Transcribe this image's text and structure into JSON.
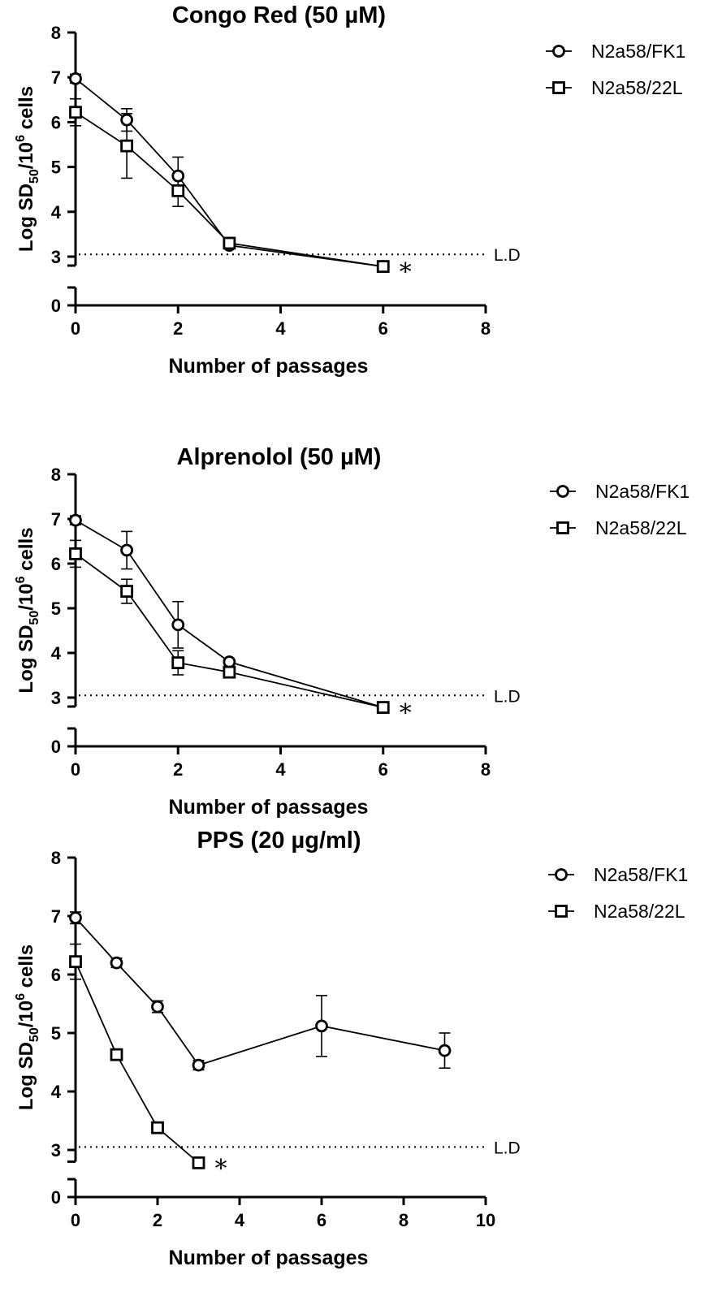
{
  "chart_data": [
    {
      "type": "line",
      "title": "Congo Red (50 µM)",
      "xlabel": "Number of passages",
      "ylabel_main": "Log SD",
      "ylabel_sub": "50",
      "ylabel_mid": "/10",
      "ylabel_sup": "6",
      "ylabel_end": " cells",
      "xlim": [
        0,
        8
      ],
      "xticks": [
        0,
        2,
        4,
        6,
        8
      ],
      "yticks": [
        0,
        3,
        4,
        5,
        6,
        7,
        8
      ],
      "ylim": [
        0,
        8
      ],
      "y_axis_break": [
        0.5,
        2.8
      ],
      "detection_limit": {
        "value": 3.05,
        "label": "L.D"
      },
      "annotation": "*",
      "legend_position": "top-right",
      "series": [
        {
          "name": "N2a58/FK1",
          "marker": "circle",
          "x": [
            0,
            1,
            2,
            3,
            6
          ],
          "y": [
            6.97,
            6.05,
            4.8,
            3.25,
            2.78
          ],
          "err": [
            0.1,
            0.25,
            0.42,
            0.05,
            0
          ]
        },
        {
          "name": "N2a58/22L",
          "marker": "square",
          "x": [
            0,
            1,
            2,
            3,
            6
          ],
          "y": [
            6.22,
            5.47,
            4.47,
            3.3,
            2.78
          ],
          "err": [
            0.3,
            0.72,
            0.35,
            0.05,
            0
          ]
        }
      ]
    },
    {
      "type": "line",
      "title": "Alprenolol (50 µM)",
      "xlabel": "Number of passages",
      "ylabel_main": "Log SD",
      "ylabel_sub": "50",
      "ylabel_mid": "/10",
      "ylabel_sup": "6",
      "ylabel_end": " cells",
      "xlim": [
        0,
        8
      ],
      "xticks": [
        0,
        2,
        4,
        6,
        8
      ],
      "yticks": [
        0,
        3,
        4,
        5,
        6,
        7,
        8
      ],
      "ylim": [
        0,
        8
      ],
      "y_axis_break": [
        0.5,
        2.8
      ],
      "detection_limit": {
        "value": 3.05,
        "label": "L.D"
      },
      "annotation": "*",
      "legend_position": "top-right",
      "series": [
        {
          "name": "N2a58/FK1",
          "marker": "circle",
          "x": [
            0,
            1,
            2,
            3,
            6
          ],
          "y": [
            6.97,
            6.3,
            4.63,
            3.8,
            2.78
          ],
          "err": [
            0.1,
            0.42,
            0.52,
            0.05,
            0
          ]
        },
        {
          "name": "N2a58/22L",
          "marker": "square",
          "x": [
            0,
            1,
            2,
            3,
            6
          ],
          "y": [
            6.22,
            5.38,
            3.78,
            3.57,
            2.78
          ],
          "err": [
            0.3,
            0.27,
            0.27,
            0.05,
            0
          ]
        }
      ]
    },
    {
      "type": "line",
      "title": "PPS (20 µg/ml)",
      "xlabel": "Number of passages",
      "ylabel_main": "Log SD",
      "ylabel_sub": "50",
      "ylabel_mid": "/10",
      "ylabel_sup": "6",
      "ylabel_end": " cells",
      "xlim": [
        0,
        10
      ],
      "xticks": [
        0,
        2,
        4,
        6,
        8,
        10
      ],
      "yticks": [
        0,
        3,
        4,
        5,
        6,
        7,
        8
      ],
      "ylim": [
        0,
        8
      ],
      "y_axis_break": [
        0.5,
        2.8
      ],
      "detection_limit": {
        "value": 3.05,
        "label": "L.D"
      },
      "annotation": "*",
      "legend_position": "top-right",
      "series": [
        {
          "name": "N2a58/FK1",
          "marker": "circle",
          "x": [
            0,
            1,
            2,
            3,
            6,
            9
          ],
          "y": [
            6.97,
            6.2,
            5.45,
            4.45,
            5.12,
            4.7
          ],
          "err": [
            0.1,
            0.08,
            0.1,
            0.08,
            0.52,
            0.3
          ]
        },
        {
          "name": "N2a58/22L",
          "marker": "square",
          "x": [
            0,
            1,
            2,
            3
          ],
          "y": [
            6.22,
            4.63,
            3.38,
            2.78
          ],
          "err": [
            0.3,
            0.08,
            0.08,
            0
          ]
        }
      ]
    }
  ]
}
